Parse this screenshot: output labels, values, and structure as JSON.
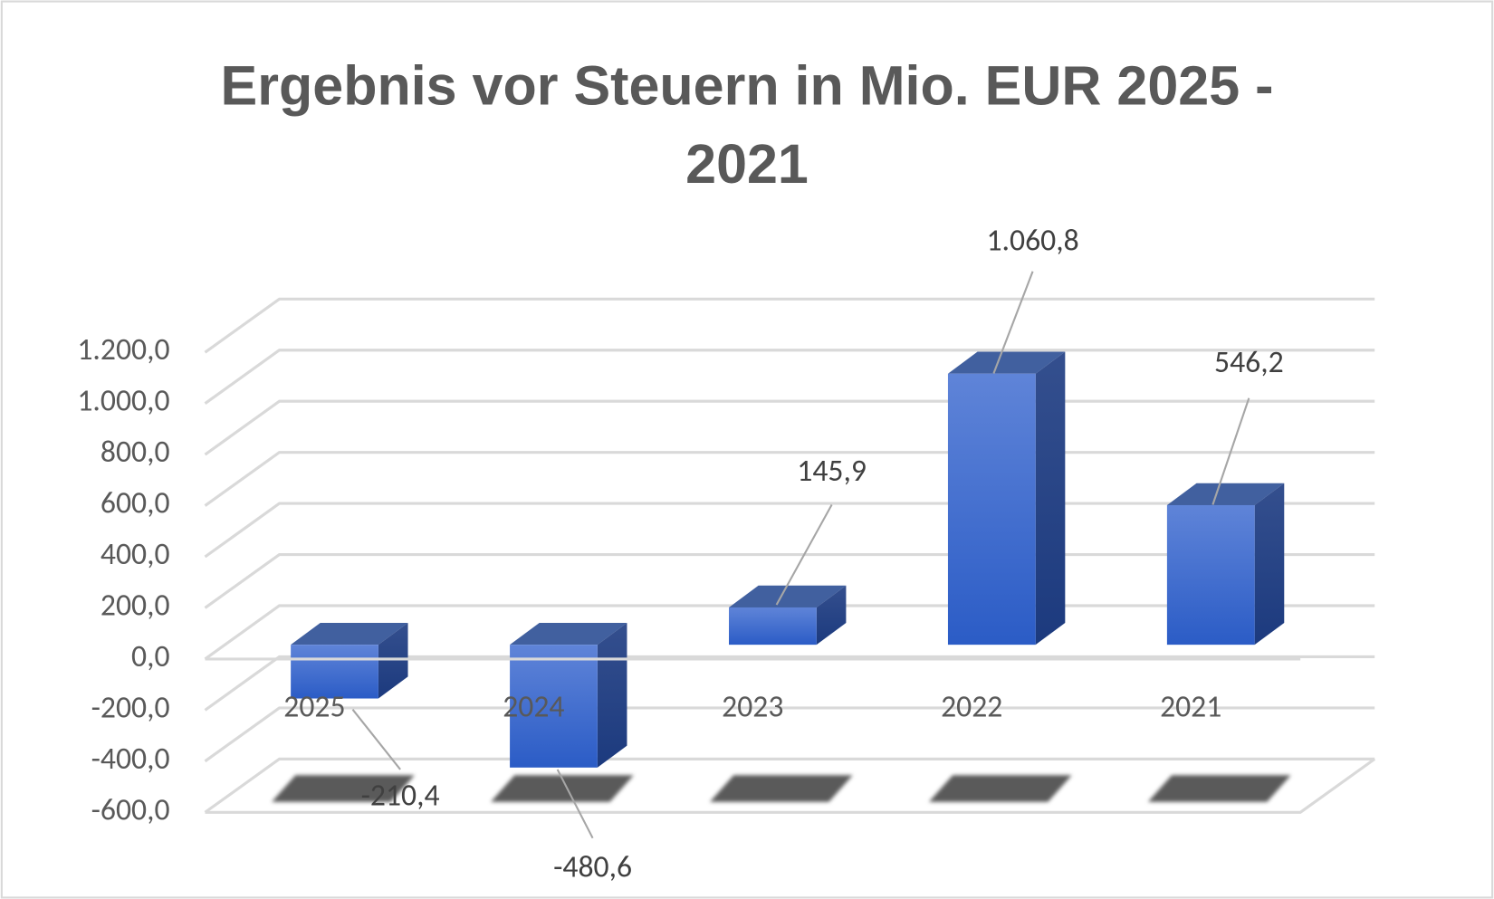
{
  "chart_data": {
    "type": "bar3d",
    "title": "Ergebnis vor Steuern in Mio. EUR  2025 - 2021",
    "categories": [
      "2025",
      "2024",
      "2023",
      "2022",
      "2021"
    ],
    "values": [
      -210.4,
      -480.6,
      145.9,
      1060.8,
      546.2
    ],
    "value_labels": [
      "-210,4",
      "-480,6",
      "145,9",
      "1.060,8",
      "546,2"
    ],
    "color": "#3a66cc",
    "ylim": [
      -600,
      1200
    ],
    "yticks": [
      {
        "value": -600,
        "label": "-600,0"
      },
      {
        "value": -400,
        "label": "-400,0"
      },
      {
        "value": -200,
        "label": "-200,0"
      },
      {
        "value": 0,
        "label": "0,0"
      },
      {
        "value": 200,
        "label": "200,0"
      },
      {
        "value": 400,
        "label": "400,0"
      },
      {
        "value": 600,
        "label": "600,0"
      },
      {
        "value": 800,
        "label": "800,0"
      },
      {
        "value": 1000,
        "label": "1.000,0"
      },
      {
        "value": 1200,
        "label": "1.200,0"
      }
    ],
    "grid": true
  }
}
